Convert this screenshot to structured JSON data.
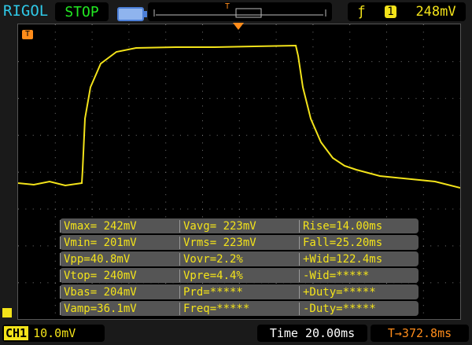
{
  "header": {
    "brand": "RIGOL",
    "run_state": "STOP",
    "trigger_channel": "1",
    "trigger_level": "248mV",
    "trigger_edge_icon": "rising-edge-icon",
    "memory_trigger_marker": "T"
  },
  "colors": {
    "channel1": "#f3e31a",
    "trigger": "#ff8c1a",
    "brand": "#2fc9e8",
    "stop": "#22e822"
  },
  "measurements": [
    [
      "Vmax= 242mV",
      "Vavg= 223mV",
      "Rise=14.00ms"
    ],
    [
      "Vmin= 201mV",
      "Vrms= 223mV",
      "Fall=25.20ms"
    ],
    [
      "Vpp=40.8mV",
      "Vovr=2.2%",
      "+Wid=122.4ms"
    ],
    [
      "Vtop= 240mV",
      "Vpre=4.4%",
      "-Wid=*****"
    ],
    [
      "Vbas= 204mV",
      "Prd=*****",
      "+Duty=*****"
    ],
    [
      "Vamp=36.1mV",
      "Freq=*****",
      "-Duty=*****"
    ]
  ],
  "footer": {
    "channel": "CH1",
    "volts_per_div": "10.0mV",
    "timebase": "Time 20.00ms",
    "trigger_offset": "372.8ms",
    "trigger_label": "T"
  }
}
